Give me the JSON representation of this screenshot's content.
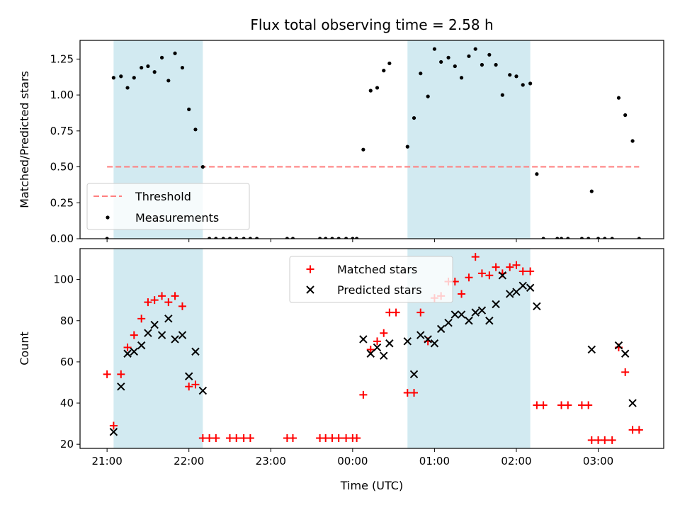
{
  "chart_data": {
    "type": "scatter",
    "title": "Flux total observing time = 2.58 h",
    "xlabel": "Time (UTC)",
    "x_unit": "hours after 21:00 UTC",
    "xlim": [
      -0.33,
      6.8
    ],
    "xticks": [
      {
        "value": 0,
        "label": "21:00"
      },
      {
        "value": 1,
        "label": "22:00"
      },
      {
        "value": 2,
        "label": "23:00"
      },
      {
        "value": 3,
        "label": "00:00"
      },
      {
        "value": 4,
        "label": "01:00"
      },
      {
        "value": 5,
        "label": "02:00"
      },
      {
        "value": 6,
        "label": "03:00"
      }
    ],
    "shaded_intervals": [
      [
        0.08,
        1.17
      ],
      [
        3.67,
        5.17
      ]
    ],
    "shade_color": "#add8e6",
    "panels": [
      {
        "ylabel": "Matched/Predicted stars",
        "ylim": [
          0,
          1.38
        ],
        "yticks": [
          0.0,
          0.25,
          0.5,
          0.75,
          1.0,
          1.25
        ],
        "ytick_labels": [
          "0.00",
          "0.25",
          "0.50",
          "0.75",
          "1.00",
          "1.25"
        ],
        "threshold": {
          "name": "Threshold",
          "y": 0.5,
          "x_range": [
            0,
            6.5
          ],
          "color": "#ff7f7f"
        },
        "series": [
          {
            "name": "Measurements",
            "marker": "dot",
            "color": "#000000",
            "points": [
              [
                0.0,
                0.0
              ],
              [
                0.08,
                1.12
              ],
              [
                0.17,
                1.13
              ],
              [
                0.25,
                1.05
              ],
              [
                0.33,
                1.12
              ],
              [
                0.42,
                1.19
              ],
              [
                0.5,
                1.2
              ],
              [
                0.58,
                1.16
              ],
              [
                0.67,
                1.26
              ],
              [
                0.75,
                1.1
              ],
              [
                0.83,
                1.29
              ],
              [
                0.92,
                1.19
              ],
              [
                1.0,
                0.9
              ],
              [
                1.08,
                0.76
              ],
              [
                1.17,
                0.5
              ],
              [
                1.25,
                0.0
              ],
              [
                1.33,
                0.0
              ],
              [
                1.42,
                0.0
              ],
              [
                1.5,
                0.0
              ],
              [
                1.58,
                0.0
              ],
              [
                1.67,
                0.0
              ],
              [
                1.75,
                0.0
              ],
              [
                1.83,
                0.0
              ],
              [
                2.2,
                0.0
              ],
              [
                2.27,
                0.0
              ],
              [
                2.6,
                0.0
              ],
              [
                2.67,
                0.0
              ],
              [
                2.75,
                0.0
              ],
              [
                2.83,
                0.0
              ],
              [
                2.92,
                0.0
              ],
              [
                3.0,
                0.0
              ],
              [
                3.05,
                0.0
              ],
              [
                3.13,
                0.62
              ],
              [
                3.22,
                1.03
              ],
              [
                3.3,
                1.05
              ],
              [
                3.38,
                1.17
              ],
              [
                3.45,
                1.22
              ],
              [
                3.67,
                0.64
              ],
              [
                3.75,
                0.84
              ],
              [
                3.83,
                1.15
              ],
              [
                3.92,
                0.99
              ],
              [
                4.0,
                1.32
              ],
              [
                4.08,
                1.23
              ],
              [
                4.17,
                1.26
              ],
              [
                4.25,
                1.2
              ],
              [
                4.33,
                1.12
              ],
              [
                4.42,
                1.27
              ],
              [
                4.5,
                1.32
              ],
              [
                4.58,
                1.21
              ],
              [
                4.67,
                1.28
              ],
              [
                4.75,
                1.21
              ],
              [
                4.83,
                1.0
              ],
              [
                4.92,
                1.14
              ],
              [
                5.0,
                1.13
              ],
              [
                5.08,
                1.07
              ],
              [
                5.17,
                1.08
              ],
              [
                5.25,
                0.45
              ],
              [
                5.33,
                0.0
              ],
              [
                5.5,
                0.0
              ],
              [
                5.55,
                0.0
              ],
              [
                5.63,
                0.0
              ],
              [
                5.8,
                0.0
              ],
              [
                5.88,
                0.0
              ],
              [
                5.92,
                0.33
              ],
              [
                6.0,
                0.0
              ],
              [
                6.08,
                0.0
              ],
              [
                6.17,
                0.0
              ],
              [
                6.25,
                0.98
              ],
              [
                6.33,
                0.86
              ],
              [
                6.42,
                0.68
              ],
              [
                6.5,
                0.0
              ]
            ]
          }
        ],
        "legend": {
          "placement": "lower-left",
          "entries": [
            "Threshold",
            "Measurements"
          ]
        }
      },
      {
        "ylabel": "Count",
        "ylim": [
          18,
          115
        ],
        "yticks": [
          20,
          40,
          60,
          80,
          100
        ],
        "ytick_labels": [
          "20",
          "40",
          "60",
          "80",
          "100"
        ],
        "series": [
          {
            "name": "Matched stars",
            "marker": "plus",
            "color": "#ff0000",
            "points": [
              [
                0.0,
                54
              ],
              [
                0.08,
                29
              ],
              [
                0.17,
                54
              ],
              [
                0.25,
                67
              ],
              [
                0.33,
                73
              ],
              [
                0.42,
                81
              ],
              [
                0.5,
                89
              ],
              [
                0.58,
                90
              ],
              [
                0.67,
                92
              ],
              [
                0.75,
                89
              ],
              [
                0.83,
                92
              ],
              [
                0.92,
                87
              ],
              [
                1.0,
                48
              ],
              [
                1.08,
                49
              ],
              [
                1.17,
                23
              ],
              [
                1.25,
                23
              ],
              [
                1.33,
                23
              ],
              [
                1.5,
                23
              ],
              [
                1.58,
                23
              ],
              [
                1.67,
                23
              ],
              [
                1.75,
                23
              ],
              [
                2.2,
                23
              ],
              [
                2.27,
                23
              ],
              [
                2.6,
                23
              ],
              [
                2.67,
                23
              ],
              [
                2.75,
                23
              ],
              [
                2.83,
                23
              ],
              [
                2.92,
                23
              ],
              [
                3.0,
                23
              ],
              [
                3.05,
                23
              ],
              [
                3.13,
                44
              ],
              [
                3.22,
                66
              ],
              [
                3.3,
                70
              ],
              [
                3.38,
                74
              ],
              [
                3.45,
                84
              ],
              [
                3.53,
                84
              ],
              [
                3.67,
                45
              ],
              [
                3.75,
                45
              ],
              [
                3.83,
                84
              ],
              [
                3.92,
                70
              ],
              [
                4.0,
                91
              ],
              [
                4.08,
                92
              ],
              [
                4.17,
                99
              ],
              [
                4.25,
                99
              ],
              [
                4.33,
                93
              ],
              [
                4.42,
                101
              ],
              [
                4.5,
                111
              ],
              [
                4.58,
                103
              ],
              [
                4.67,
                102
              ],
              [
                4.75,
                106
              ],
              [
                4.83,
                103
              ],
              [
                4.92,
                106
              ],
              [
                5.0,
                107
              ],
              [
                5.08,
                104
              ],
              [
                5.17,
                104
              ],
              [
                5.25,
                39
              ],
              [
                5.33,
                39
              ],
              [
                5.55,
                39
              ],
              [
                5.63,
                39
              ],
              [
                5.8,
                39
              ],
              [
                5.88,
                39
              ],
              [
                5.92,
                22
              ],
              [
                6.0,
                22
              ],
              [
                6.08,
                22
              ],
              [
                6.17,
                22
              ],
              [
                6.25,
                67
              ],
              [
                6.33,
                55
              ],
              [
                6.42,
                27
              ],
              [
                6.5,
                27
              ]
            ]
          },
          {
            "name": "Predicted stars",
            "marker": "x",
            "color": "#000000",
            "points": [
              [
                0.08,
                26
              ],
              [
                0.17,
                48
              ],
              [
                0.25,
                64
              ],
              [
                0.33,
                65
              ],
              [
                0.42,
                68
              ],
              [
                0.5,
                74
              ],
              [
                0.58,
                78
              ],
              [
                0.67,
                73
              ],
              [
                0.75,
                81
              ],
              [
                0.83,
                71
              ],
              [
                0.92,
                73
              ],
              [
                1.0,
                53
              ],
              [
                1.08,
                65
              ],
              [
                1.17,
                46
              ],
              [
                3.13,
                71
              ],
              [
                3.22,
                64
              ],
              [
                3.3,
                67
              ],
              [
                3.38,
                63
              ],
              [
                3.45,
                69
              ],
              [
                3.67,
                70
              ],
              [
                3.75,
                54
              ],
              [
                3.83,
                73
              ],
              [
                3.92,
                71
              ],
              [
                4.0,
                69
              ],
              [
                4.08,
                76
              ],
              [
                4.17,
                79
              ],
              [
                4.25,
                83
              ],
              [
                4.33,
                83
              ],
              [
                4.42,
                80
              ],
              [
                4.5,
                84
              ],
              [
                4.58,
                85
              ],
              [
                4.67,
                80
              ],
              [
                4.75,
                88
              ],
              [
                4.83,
                102
              ],
              [
                4.92,
                93
              ],
              [
                5.0,
                94
              ],
              [
                5.08,
                97
              ],
              [
                5.17,
                96
              ],
              [
                5.25,
                87
              ],
              [
                5.92,
                66
              ],
              [
                6.25,
                68
              ],
              [
                6.33,
                64
              ],
              [
                6.42,
                40
              ]
            ]
          }
        ],
        "legend": {
          "placement": "upper-center",
          "entries": [
            "Matched stars",
            "Predicted stars"
          ]
        }
      }
    ]
  }
}
